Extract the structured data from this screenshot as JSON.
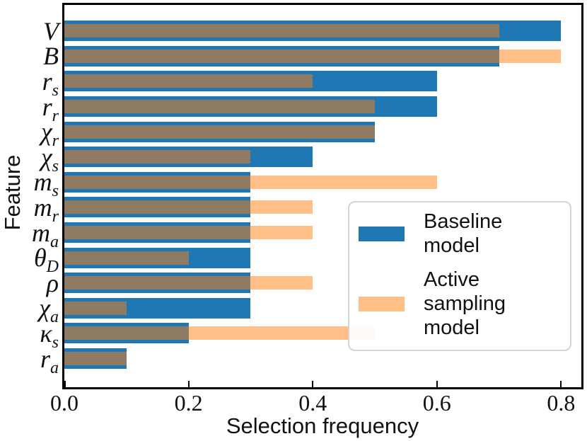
{
  "chart_data": {
    "type": "bar",
    "orientation": "horizontal",
    "title": "",
    "xlabel": "Selection frequency",
    "ylabel": "Feature",
    "xlim": [
      0,
      0.835
    ],
    "grid": false,
    "xtick_labels": [
      "0.0",
      "0.2",
      "0.4",
      "0.6",
      "0.8"
    ],
    "xtick_values": [
      0,
      0.2,
      0.4,
      0.6,
      0.8
    ],
    "categories": [
      {
        "main": "V",
        "sub": ""
      },
      {
        "main": "B",
        "sub": ""
      },
      {
        "main": "r",
        "sub": "s"
      },
      {
        "main": "r",
        "sub": "r"
      },
      {
        "main": "χ",
        "sub": "r"
      },
      {
        "main": "χ",
        "sub": "s"
      },
      {
        "main": "m",
        "sub": "s"
      },
      {
        "main": "m",
        "sub": "r"
      },
      {
        "main": "m",
        "sub": "a"
      },
      {
        "main": "θ",
        "sub": "D"
      },
      {
        "main": "ρ",
        "sub": ""
      },
      {
        "main": "χ",
        "sub": "a"
      },
      {
        "main": "κ",
        "sub": "s"
      },
      {
        "main": "r",
        "sub": "a"
      }
    ],
    "series": [
      {
        "name": "Baseline model",
        "color": "#1f77b4",
        "alpha": 1,
        "values": [
          0.8,
          0.7,
          0.6,
          0.6,
          0.5,
          0.4,
          0.3,
          0.3,
          0.3,
          0.3,
          0.3,
          0.3,
          0.2,
          0.1
        ]
      },
      {
        "name": "Active sampling model",
        "color": "#ff7f0e",
        "alpha": 0.5,
        "values": [
          0.7,
          0.8,
          0.4,
          0.5,
          0.5,
          0.3,
          0.6,
          0.4,
          0.4,
          0.2,
          0.4,
          0.1,
          0.5,
          0.1
        ]
      }
    ],
    "legend": {
      "position": "center-right",
      "entries": [
        {
          "label_lines": [
            "Baseline",
            "model"
          ],
          "swatch_color": "#1f77b4",
          "swatch_alpha": 1
        },
        {
          "label_lines": [
            "Active sampling",
            "model"
          ],
          "swatch_color": "#ff7f0e",
          "swatch_alpha": 0.5
        }
      ]
    },
    "colors": {
      "baseline_blue": "#1f77b4",
      "active_orange_base": "#ff7f0e",
      "active_orange_rendered": "#ffbf86",
      "overlap_brown": "#8f7b61",
      "frame": "#000000",
      "legend_border": "#d4d4d4",
      "text": "#111111"
    }
  }
}
